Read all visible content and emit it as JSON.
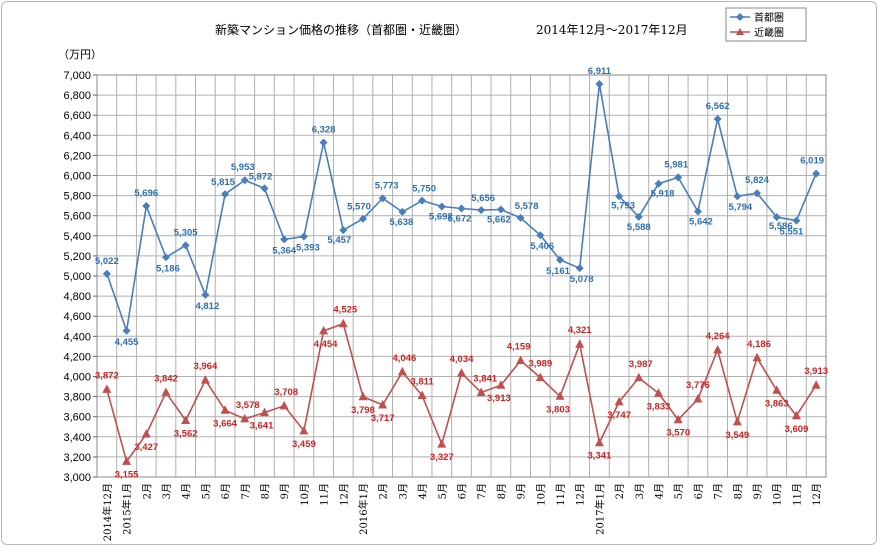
{
  "chart_data": {
    "type": "line",
    "title": "新築マンション価格の推移（首都圏・近畿圏）",
    "period": "2014年12月～2017年12月",
    "ylabel": "（万円）",
    "ylim": [
      3000,
      7000
    ],
    "ystep": 200,
    "grid": true,
    "legend_position": "top-right",
    "categories": [
      "2014年12月",
      "2015年1月",
      "2月",
      "3月",
      "4月",
      "5月",
      "6月",
      "7月",
      "8月",
      "9月",
      "10月",
      "11月",
      "12月",
      "2016年1月",
      "2月",
      "3月",
      "4月",
      "5月",
      "6月",
      "7月",
      "8月",
      "9月",
      "10月",
      "11月",
      "12月",
      "2017年1月",
      "2月",
      "3月",
      "4月",
      "5月",
      "6月",
      "7月",
      "8月",
      "9月",
      "10月",
      "11月",
      "12月"
    ],
    "series": [
      {
        "name": "首都圏",
        "color": "#4a7ebb",
        "marker": "diamond",
        "values": [
          5022,
          4455,
          5696,
          5186,
          5305,
          4812,
          5815,
          5953,
          5872,
          5364,
          5393,
          6328,
          5457,
          5570,
          5773,
          5638,
          5750,
          5692,
          5672,
          5656,
          5662,
          5578,
          5406,
          5161,
          5078,
          6911,
          5793,
          5588,
          5918,
          5981,
          5642,
          6562,
          5794,
          5824,
          5586,
          5551,
          6019
        ],
        "labels": [
          "5,022",
          "4,455",
          "5,696",
          "5,186",
          "5,305",
          "4,812",
          "5,815",
          "5,953",
          "5,872",
          "5,364",
          "5,393",
          "6,328",
          "5,457",
          "5,570",
          "5,773",
          "5,638",
          "5,750",
          "5,692",
          "5,672",
          "5,656",
          "5,662",
          "5,578",
          "5,406",
          "5,161",
          "5,078",
          "6,911",
          "5,793",
          "5,588",
          "5,918",
          "5,981",
          "5,642",
          "6,562",
          "5,794",
          "5,824",
          "5,586",
          "5,551",
          "6,019"
        ]
      },
      {
        "name": "近畿圏",
        "color": "#c0504d",
        "marker": "triangle",
        "values": [
          3872,
          3155,
          3427,
          3842,
          3562,
          3964,
          3664,
          3578,
          3641,
          3708,
          3459,
          4454,
          4525,
          3798,
          3717,
          4046,
          3811,
          3327,
          4034,
          3841,
          3913,
          4159,
          3989,
          3803,
          4321,
          3341,
          3747,
          3987,
          3833,
          3570,
          3776,
          4264,
          3549,
          4186,
          3863,
          3609,
          3913
        ],
        "labels": [
          "3,872",
          "3,155",
          "3,427",
          "3,842",
          "3,562",
          "3,964",
          "3,664",
          "3,578",
          "3,641",
          "3,708",
          "3,459",
          "4,454",
          "4,525",
          "3,798",
          "3,717",
          "4,046",
          "3,811",
          "3,327",
          "4,034",
          "3,841",
          "3,913",
          "4,159",
          "3,989",
          "3,803",
          "4,321",
          "3,341",
          "3,747",
          "3,987",
          "3,833",
          "3,570",
          "3,776",
          "4,264",
          "3,549",
          "4,186",
          "3,863",
          "3,609",
          "3,913"
        ]
      }
    ]
  }
}
